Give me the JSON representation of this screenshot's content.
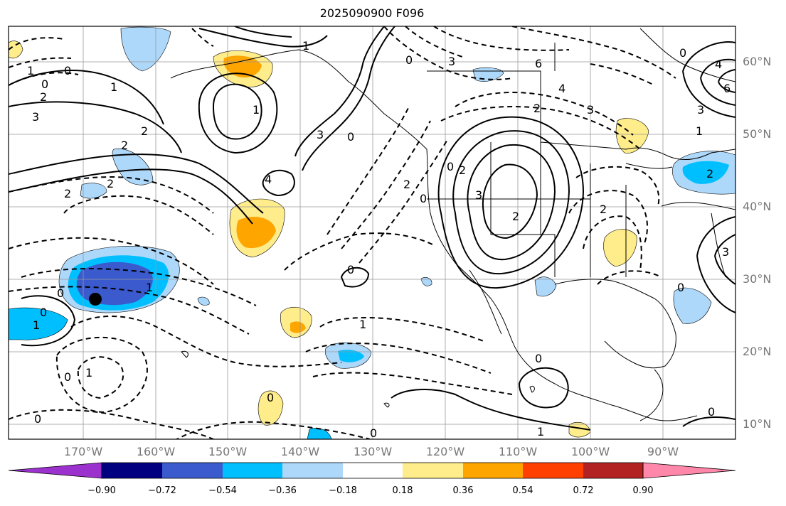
{
  "title": "2025090900 F096",
  "lat_ticks": [
    "60°N",
    "50°N",
    "40°N",
    "30°N",
    "20°N",
    "10°N"
  ],
  "lon_ticks": [
    "170°W",
    "160°W",
    "150°W",
    "140°W",
    "130°W",
    "120°W",
    "110°W",
    "100°W",
    "90°W"
  ],
  "colorbar": {
    "colors": [
      "#9b32cd",
      "#000080",
      "#3a5acd",
      "#00bfff",
      "#add8fa",
      "#ffffff",
      "#ffec8b",
      "#ffa500",
      "#ff4000",
      "#b22222",
      "#ff88aa"
    ],
    "labels": [
      "−0.90",
      "−0.72",
      "−0.54",
      "−0.36",
      "−0.18",
      "0.18",
      "0.36",
      "0.54",
      "0.72",
      "0.90"
    ]
  },
  "contour_labels": [
    "0",
    "1",
    "2",
    "3",
    "4",
    "6"
  ]
}
